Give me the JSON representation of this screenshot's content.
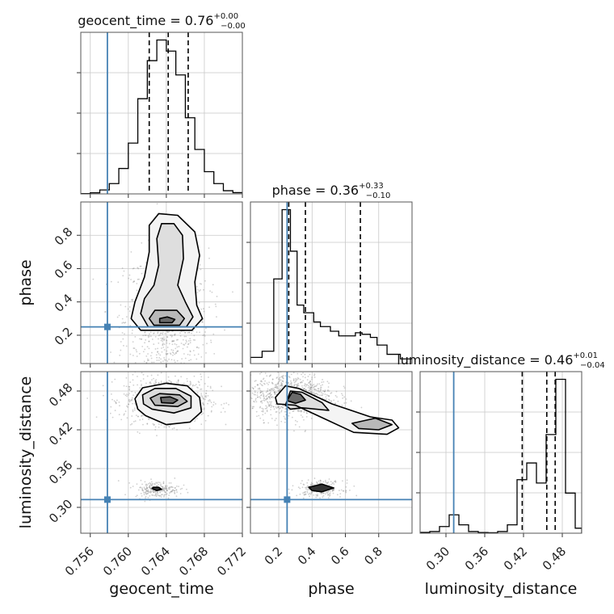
{
  "chart_data": {
    "type": "corner",
    "parameters": [
      {
        "name": "geocent_time",
        "title": "geocent_time = 0.76",
        "title_plus": "+0.00",
        "title_minus": "−0.00",
        "xlabel": "geocent_time",
        "range": [
          0.755,
          0.772
        ],
        "ticks": [
          "0.756",
          "0.760",
          "0.764",
          "0.768",
          "0.772"
        ],
        "tick_values": [
          0.756,
          0.76,
          0.764,
          0.768,
          0.772
        ],
        "injection": 0.7578,
        "quantiles": [
          0.7622,
          0.7642,
          0.7663
        ],
        "hist_bins": [
          0.755,
          0.756,
          0.757,
          0.758,
          0.759,
          0.76,
          0.761,
          0.762,
          0.763,
          0.764,
          0.765,
          0.766,
          0.767,
          0.768,
          0.769,
          0.77,
          0.771,
          0.772
        ],
        "hist_counts": [
          0.2,
          0.7,
          2.5,
          6.5,
          16,
          32,
          60,
          84,
          97,
          90,
          75,
          48,
          28,
          14,
          6.5,
          2,
          0.8
        ]
      },
      {
        "name": "phase",
        "title": "phase = 0.36",
        "title_plus": "+0.33",
        "title_minus": "−0.10",
        "xlabel": "phase",
        "ylabel": "phase",
        "range": [
          0.03,
          1.0
        ],
        "ticks": [
          "0.2",
          "0.4",
          "0.6",
          "0.8"
        ],
        "tick_values": [
          0.2,
          0.4,
          0.6,
          0.8
        ],
        "injection": 0.25,
        "quantiles": [
          0.26,
          0.36,
          0.69
        ],
        "hist_bins": [
          0.03,
          0.1,
          0.17,
          0.22,
          0.27,
          0.31,
          0.35,
          0.41,
          0.45,
          0.51,
          0.56,
          0.6,
          0.66,
          0.7,
          0.75,
          0.79,
          0.85,
          0.93,
          1.0
        ],
        "hist_counts": [
          0.04,
          0.08,
          0.55,
          1.0,
          0.73,
          0.38,
          0.33,
          0.27,
          0.24,
          0.21,
          0.18,
          0.18,
          0.2,
          0.19,
          0.17,
          0.12,
          0.06,
          0.03
        ]
      },
      {
        "name": "luminosity_distance",
        "title": "luminosity_distance = 0.46",
        "title_plus": "+0.01",
        "title_minus": "−0.04",
        "xlabel": "luminosity_distance",
        "ylabel": "luminosity_distance",
        "range": [
          0.26,
          0.51
        ],
        "ticks": [
          "0.30",
          "0.36",
          "0.42",
          "0.48"
        ],
        "tick_values": [
          0.3,
          0.36,
          0.42,
          0.48
        ],
        "injection": 0.312,
        "quantiles": [
          0.418,
          0.456,
          0.469
        ],
        "hist_bins": [
          0.26,
          0.275,
          0.29,
          0.305,
          0.32,
          0.335,
          0.35,
          0.365,
          0.38,
          0.395,
          0.41,
          0.425,
          0.44,
          0.455,
          0.47,
          0.485,
          0.5,
          0.51
        ],
        "hist_counts": [
          0.5,
          1,
          4,
          11,
          5,
          1,
          0.4,
          0.3,
          1,
          5,
          32,
          42,
          30,
          59,
          92,
          24,
          3
        ]
      }
    ],
    "injection_color": "#4682b4",
    "contours": [
      {
        "x_param": "geocent_time",
        "y_param": "phase",
        "blob_centers": [
          [
            0.764,
            0.29
          ]
        ],
        "levels": [
          [
            [
              0.7613,
              0.23
            ],
            [
              0.7667,
              0.23
            ],
            [
              0.7678,
              0.3
            ],
            [
              0.7672,
              0.38
            ],
            [
              0.767,
              0.52
            ],
            [
              0.7675,
              0.68
            ],
            [
              0.767,
              0.82
            ],
            [
              0.7652,
              0.92
            ],
            [
              0.7632,
              0.93
            ],
            [
              0.7622,
              0.86
            ],
            [
              0.7622,
              0.7
            ],
            [
              0.7617,
              0.55
            ],
            [
              0.7607,
              0.4
            ],
            [
              0.7603,
              0.3
            ]
          ],
          [
            [
              0.7621,
              0.25
            ],
            [
              0.7661,
              0.25
            ],
            [
              0.7668,
              0.31
            ],
            [
              0.766,
              0.4
            ],
            [
              0.7652,
              0.5
            ],
            [
              0.7658,
              0.66
            ],
            [
              0.7657,
              0.8
            ],
            [
              0.7648,
              0.87
            ],
            [
              0.7635,
              0.87
            ],
            [
              0.763,
              0.78
            ],
            [
              0.7632,
              0.62
            ],
            [
              0.7627,
              0.5
            ],
            [
              0.7617,
              0.42
            ],
            [
              0.7613,
              0.33
            ]
          ],
          [
            [
              0.7627,
              0.26
            ],
            [
              0.7654,
              0.26
            ],
            [
              0.7659,
              0.3
            ],
            [
              0.7651,
              0.35
            ],
            [
              0.7628,
              0.35
            ],
            [
              0.7622,
              0.3
            ]
          ],
          [
            [
              0.7633,
              0.275
            ],
            [
              0.7646,
              0.275
            ],
            [
              0.7649,
              0.295
            ],
            [
              0.7641,
              0.31
            ],
            [
              0.7633,
              0.3
            ]
          ]
        ]
      },
      {
        "x_param": "geocent_time",
        "y_param": "luminosity_distance",
        "blob_centers": [
          [
            0.764,
            0.466
          ],
          [
            0.763,
            0.328
          ]
        ],
        "levels": [
          [
            [
              0.7618,
              0.442
            ],
            [
              0.764,
              0.428
            ],
            [
              0.7665,
              0.432
            ],
            [
              0.7677,
              0.448
            ],
            [
              0.7675,
              0.47
            ],
            [
              0.7662,
              0.488
            ],
            [
              0.764,
              0.492
            ],
            [
              0.7615,
              0.485
            ],
            [
              0.7607,
              0.468
            ],
            [
              0.761,
              0.452
            ]
          ],
          [
            [
              0.7625,
              0.452
            ],
            [
              0.7648,
              0.446
            ],
            [
              0.7666,
              0.454
            ],
            [
              0.7666,
              0.472
            ],
            [
              0.765,
              0.484
            ],
            [
              0.7628,
              0.484
            ],
            [
              0.7615,
              0.474
            ],
            [
              0.7616,
              0.46
            ]
          ],
          [
            [
              0.7628,
              0.458
            ],
            [
              0.7652,
              0.456
            ],
            [
              0.7662,
              0.464
            ],
            [
              0.7654,
              0.474
            ],
            [
              0.7633,
              0.476
            ],
            [
              0.7623,
              0.469
            ]
          ],
          [
            [
              0.7635,
              0.462
            ],
            [
              0.7647,
              0.461
            ],
            [
              0.7652,
              0.466
            ],
            [
              0.7644,
              0.471
            ],
            [
              0.7634,
              0.47
            ]
          ],
          [
            [
              0.7625,
              0.329
            ],
            [
              0.763,
              0.326
            ],
            [
              0.7635,
              0.328
            ],
            [
              0.7632,
              0.331
            ],
            [
              0.7626,
              0.331
            ]
          ]
        ]
      },
      {
        "x_param": "phase",
        "y_param": "luminosity_distance",
        "blob_centers": [
          [
            0.28,
            0.472
          ],
          [
            0.45,
            0.329
          ]
        ],
        "levels": [
          [
            [
              0.18,
              0.47
            ],
            [
              0.24,
              0.488
            ],
            [
              0.32,
              0.484
            ],
            [
              0.52,
              0.46
            ],
            [
              0.75,
              0.44
            ],
            [
              0.88,
              0.435
            ],
            [
              0.92,
              0.423
            ],
            [
              0.85,
              0.413
            ],
            [
              0.65,
              0.416
            ],
            [
              0.45,
              0.44
            ],
            [
              0.3,
              0.458
            ],
            [
              0.19,
              0.46
            ]
          ],
          [
            [
              0.24,
              0.458
            ],
            [
              0.27,
              0.48
            ],
            [
              0.34,
              0.478
            ],
            [
              0.46,
              0.462
            ],
            [
              0.5,
              0.45
            ],
            [
              0.34,
              0.454
            ],
            [
              0.27,
              0.452
            ]
          ],
          [
            [
              0.64,
              0.43
            ],
            [
              0.78,
              0.438
            ],
            [
              0.88,
              0.428
            ],
            [
              0.8,
              0.42
            ],
            [
              0.68,
              0.422
            ]
          ],
          [
            [
              0.25,
              0.465
            ],
            [
              0.28,
              0.478
            ],
            [
              0.33,
              0.475
            ],
            [
              0.36,
              0.466
            ],
            [
              0.3,
              0.461
            ]
          ],
          [
            [
              0.38,
              0.331
            ],
            [
              0.46,
              0.336
            ],
            [
              0.53,
              0.33
            ],
            [
              0.46,
              0.324
            ],
            [
              0.4,
              0.326
            ]
          ]
        ]
      }
    ]
  }
}
